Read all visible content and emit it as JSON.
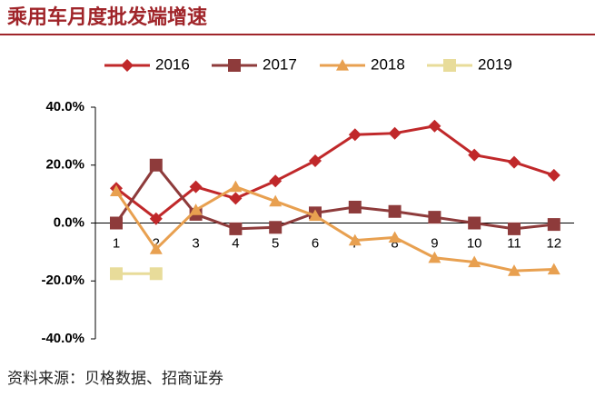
{
  "chart_data": {
    "type": "line",
    "title": "乘用车月度批发端增速",
    "source": "资料来源：贝格数据、招商证券",
    "categories": [
      "1",
      "2",
      "3",
      "4",
      "5",
      "6",
      "7",
      "8",
      "9",
      "10",
      "11",
      "12"
    ],
    "series": [
      {
        "name": "2016",
        "color": "#c0282a",
        "marker": "diamond",
        "values": [
          12,
          1.5,
          12.5,
          8.5,
          14.5,
          21.5,
          30.5,
          31,
          33.5,
          23.5,
          21,
          16.5
        ]
      },
      {
        "name": "2017",
        "color": "#8e3b3b",
        "marker": "square",
        "values": [
          0,
          20,
          3,
          -2,
          -1.5,
          3.5,
          5.5,
          4,
          2,
          0,
          -2,
          -0.5
        ]
      },
      {
        "name": "2018",
        "color": "#e8a050",
        "marker": "triangle",
        "values": [
          11,
          -9,
          4.5,
          12.5,
          7.5,
          2.5,
          -6,
          -5,
          -12,
          -13.5,
          -16.5,
          -16
        ]
      },
      {
        "name": "2019",
        "color": "#e8dc9a",
        "marker": "square",
        "values": [
          -17.5,
          -17.5,
          null,
          null,
          null,
          null,
          null,
          null,
          null,
          null,
          null,
          null
        ]
      }
    ],
    "ylim": [
      -40,
      40
    ],
    "yticks": [
      {
        "value": -40,
        "label": "-40.0%"
      },
      {
        "value": -20,
        "label": "-20.0%"
      },
      {
        "value": 0,
        "label": "0.0%"
      },
      {
        "value": 20,
        "label": "20.0%"
      },
      {
        "value": 40,
        "label": "40.0%"
      }
    ],
    "legend": "top"
  }
}
